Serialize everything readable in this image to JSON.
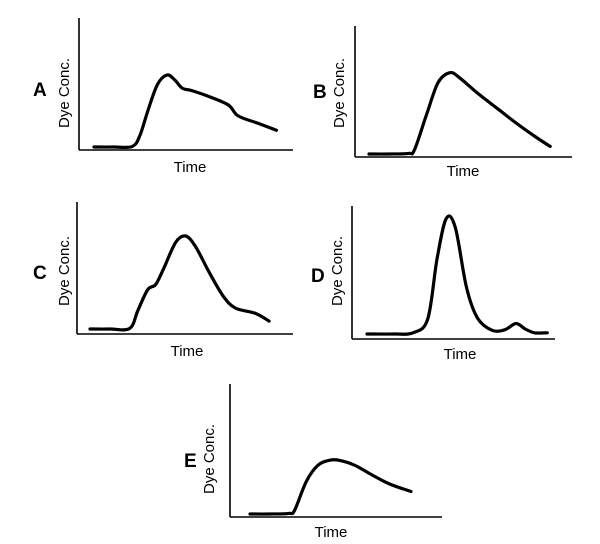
{
  "chart_data": [
    {
      "type": "line",
      "panel_label": "A",
      "xlabel": "Time",
      "ylabel": "Dye Conc.",
      "xlim": [
        0,
        10
      ],
      "ylim": [
        0,
        10
      ],
      "grid": false,
      "x": [
        0,
        1.0,
        2.0,
        2.4,
        2.8,
        3.3,
        3.8,
        4.2,
        4.6,
        5.1,
        6.0,
        7.0,
        7.5,
        8.5,
        9.5
      ],
      "y": [
        0.0,
        0.0,
        0.05,
        1.0,
        3.0,
        5.2,
        6.0,
        5.6,
        4.9,
        4.7,
        4.2,
        3.5,
        2.6,
        2.0,
        1.4
      ]
    },
    {
      "type": "line",
      "panel_label": "B",
      "xlabel": "Time",
      "ylabel": "Dye Conc.",
      "xlim": [
        0,
        10
      ],
      "ylim": [
        0,
        10
      ],
      "grid": false,
      "x": [
        0,
        1.0,
        2.0,
        2.3,
        2.9,
        3.5,
        4.1,
        4.6,
        5.5,
        6.5,
        7.5,
        8.5,
        9.2
      ],
      "y": [
        0.0,
        0.0,
        0.05,
        0.3,
        3.0,
        5.6,
        6.4,
        6.0,
        4.8,
        3.6,
        2.4,
        1.3,
        0.6
      ]
    },
    {
      "type": "line",
      "panel_label": "C",
      "xlabel": "Time",
      "ylabel": "Dye Conc.",
      "xlim": [
        0,
        10
      ],
      "ylim": [
        0,
        10
      ],
      "grid": false,
      "x": [
        0,
        1.0,
        2.0,
        2.4,
        2.9,
        3.3,
        3.7,
        4.3,
        4.8,
        5.3,
        6.0,
        6.7,
        7.3,
        8.3,
        9.0
      ],
      "y": [
        0.0,
        0.0,
        0.05,
        1.4,
        3.0,
        3.4,
        4.6,
        6.6,
        7.1,
        6.3,
        4.3,
        2.5,
        1.6,
        1.2,
        0.6
      ]
    },
    {
      "type": "line",
      "panel_label": "D",
      "xlabel": "Time",
      "ylabel": "Dye Conc.",
      "xlim": [
        0,
        10
      ],
      "ylim": [
        0,
        10
      ],
      "grid": false,
      "x": [
        0,
        1.5,
        2.5,
        3.3,
        3.8,
        4.3,
        4.8,
        5.4,
        6.0,
        6.8,
        7.5,
        8.1,
        8.6,
        9.1,
        9.8
      ],
      "y": [
        0.0,
        0.0,
        0.1,
        1.2,
        6.0,
        9.3,
        8.6,
        3.8,
        1.3,
        0.3,
        0.35,
        0.85,
        0.4,
        0.1,
        0.1
      ]
    },
    {
      "type": "line",
      "panel_label": "E",
      "xlabel": "Time",
      "ylabel": "Dye Conc.",
      "xlim": [
        0,
        10
      ],
      "ylim": [
        0,
        10
      ],
      "grid": false,
      "x": [
        0,
        1.0,
        2.0,
        2.3,
        2.9,
        3.5,
        4.1,
        4.6,
        5.4,
        6.2,
        7.2,
        8.3
      ],
      "y": [
        0.0,
        0.0,
        0.05,
        0.3,
        2.6,
        3.9,
        4.3,
        4.3,
        3.9,
        3.2,
        2.4,
        1.8
      ]
    }
  ]
}
